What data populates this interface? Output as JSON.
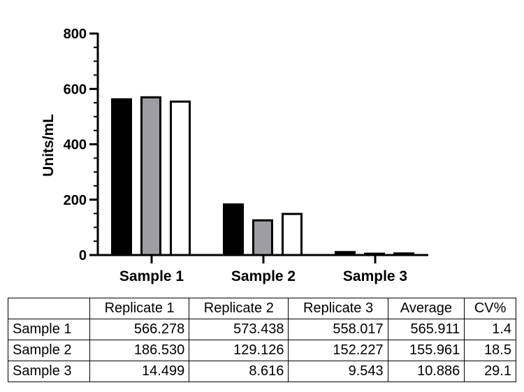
{
  "chart_data": {
    "type": "bar",
    "categories": [
      "Sample 1",
      "Sample 2",
      "Sample 3"
    ],
    "series": [
      {
        "name": "Replicate 1",
        "values": [
          566.278,
          186.53,
          14.499
        ],
        "fill": "#000000"
      },
      {
        "name": "Replicate 2",
        "values": [
          573.438,
          129.126,
          8.616
        ],
        "fill": "#9e9ea2"
      },
      {
        "name": "Replicate 3",
        "values": [
          558.017,
          152.227,
          9.543
        ],
        "fill": "#ffffff"
      }
    ],
    "ylabel": "Units/mL",
    "xlabel": "",
    "ylim": [
      0,
      800
    ],
    "yticks": [
      "0",
      "200",
      "400",
      "600",
      "800"
    ],
    "grid": false,
    "legend": "none"
  },
  "table": {
    "headers": [
      "",
      "Replicate 1",
      "Replicate 2",
      "Replicate 3",
      "Average",
      "CV%"
    ],
    "rows": [
      [
        "Sample 1",
        "566.278",
        "573.438",
        "558.017",
        "565.911",
        "1.4"
      ],
      [
        "Sample 2",
        "186.530",
        "129.126",
        "152.227",
        "155.961",
        "18.5"
      ],
      [
        "Sample 3",
        "14.499",
        "8.616",
        "9.543",
        "10.886",
        "29.1"
      ]
    ]
  }
}
